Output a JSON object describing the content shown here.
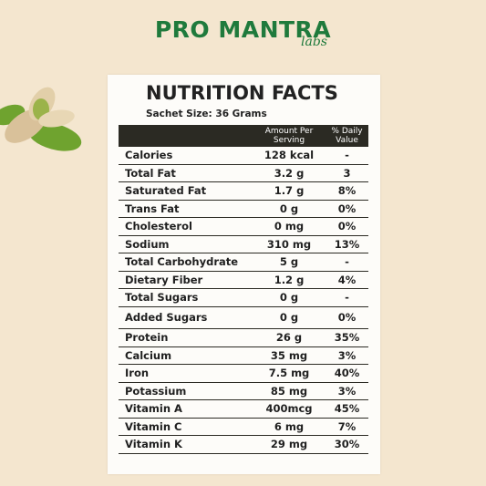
{
  "header": {
    "brand": "PRO MANTRA",
    "sub": "labs"
  },
  "label": {
    "title": "NUTRITION FACTS",
    "serving": "Sachet Size: 36 Grams"
  },
  "table": {
    "header": [
      "",
      "Amount Per Serving",
      "% Daily Value"
    ],
    "rows": [
      [
        "Calories",
        "128 kcal",
        "-"
      ],
      [
        "Total Fat",
        "3.2 g",
        "3"
      ],
      [
        "Saturated Fat",
        "1.7 g",
        "8%"
      ],
      [
        "Trans Fat",
        "0 g",
        "0%"
      ],
      [
        "Cholesterol",
        "0 mg",
        "0%"
      ],
      [
        "Sodium",
        "310 mg",
        "13%"
      ],
      [
        "Total Carbohydrate",
        "5 g",
        "-"
      ],
      [
        "Dietary Fiber",
        "1.2 g",
        "4%"
      ],
      [
        "Total Sugars",
        "0 g",
        "-"
      ],
      [
        "Added Sugars",
        "0 g",
        "0%"
      ],
      [
        "Protein",
        "26 g",
        "35%"
      ],
      [
        "Calcium",
        "35 mg",
        "3%"
      ],
      [
        "Iron",
        "7.5 mg",
        "40%"
      ],
      [
        "Potassium",
        "85 mg",
        "3%"
      ],
      [
        "Vitamin A",
        "400mcg",
        "45%"
      ],
      [
        "Vitamin C",
        "6 mg",
        "7%"
      ],
      [
        "Vitamin K",
        "29 mg",
        "30%"
      ]
    ]
  }
}
